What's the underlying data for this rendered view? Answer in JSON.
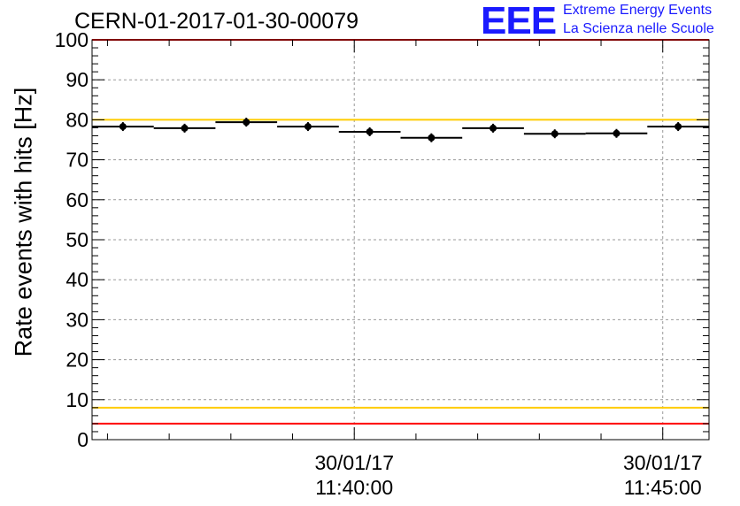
{
  "header": {
    "title": "CERN-01-2017-01-30-00079",
    "logo_mark": "EEE",
    "logo_line1": "Extreme Energy Events",
    "logo_line2": "La Scienza nelle Scuole"
  },
  "colors": {
    "logo": "#1a1aff",
    "red_line": "#ff0000",
    "yellow_line": "#ffcc00",
    "grid": "#999999",
    "marker": "#000000"
  },
  "chart_data": {
    "type": "scatter",
    "title": "CERN-01-2017-01-30-00079",
    "xlabel": "",
    "ylabel": "Rate events with hits [Hz]",
    "ylim": [
      0,
      100
    ],
    "yticks": [
      0,
      10,
      20,
      30,
      40,
      50,
      60,
      70,
      80,
      90,
      100
    ],
    "xlim": [
      "30/01/17 11:35:45",
      "30/01/17 11:45:45"
    ],
    "x_tick_labels": [
      {
        "date": "30/01/17",
        "time": "11:40:00"
      },
      {
        "date": "30/01/17",
        "time": "11:45:00"
      }
    ],
    "grid": true,
    "bin_width_seconds": 60,
    "x": [
      "11:36:15",
      "11:37:15",
      "11:38:15",
      "11:39:15",
      "11:40:15",
      "11:41:15",
      "11:42:15",
      "11:43:15",
      "11:44:15",
      "11:45:15"
    ],
    "values": [
      78.3,
      77.9,
      79.4,
      78.3,
      77.0,
      75.5,
      77.9,
      76.5,
      76.6,
      78.3
    ],
    "reference_lines": [
      {
        "y": 100,
        "color": "red"
      },
      {
        "y": 80,
        "color": "yellow"
      },
      {
        "y": 8,
        "color": "yellow"
      },
      {
        "y": 4,
        "color": "red"
      }
    ]
  }
}
